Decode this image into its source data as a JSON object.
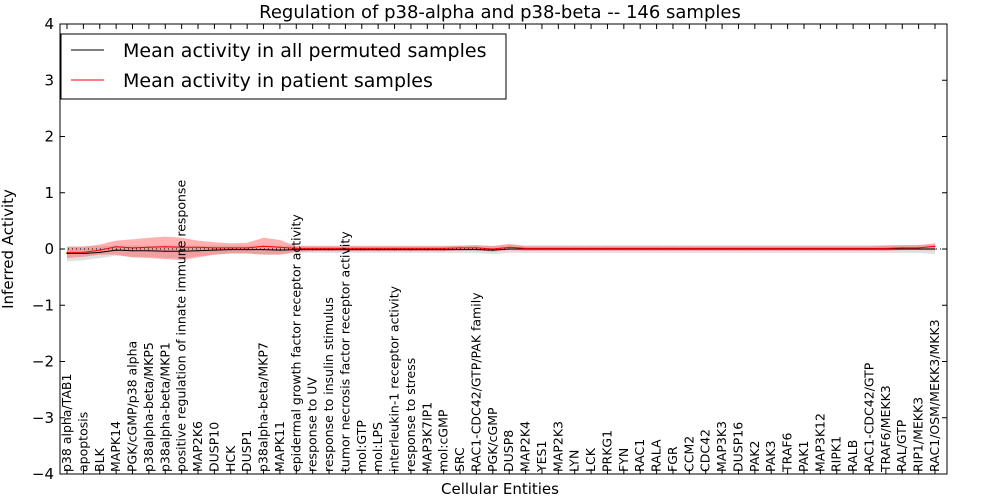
{
  "chart_data": {
    "type": "line",
    "title": "Regulation of p38-alpha and p38-beta -- 146 samples",
    "xlabel": "Cellular Entities",
    "ylabel": "Inferred Activity",
    "ylim": [
      -4,
      4
    ],
    "yticks": [
      -4,
      -3,
      -2,
      -1,
      0,
      1,
      2,
      3,
      4
    ],
    "ytick_labels": [
      "−4",
      "−3",
      "−2",
      "−1",
      "0",
      "1",
      "2",
      "3",
      "4"
    ],
    "grid": false,
    "legend_position": "top-left",
    "categories": [
      "p38 alpha/TAB1",
      "apoptosis",
      "BLK",
      "MAPK14",
      "PGK/cGMP/p38 alpha",
      "p38alpha-beta/MKP5",
      "p38alpha-beta/MKP1",
      "positive regulation of innate immune response",
      "MAP2K6",
      "DUSP10",
      "HCK",
      "DUSP1",
      "p38alpha-beta/MKP7",
      "MAPK11",
      "epidermal growth factor receptor activity",
      "response to UV",
      "response to insulin stimulus",
      "tumor necrosis factor receptor activity",
      "mol:GTP",
      "mol:LPS",
      "interleukin-1 receptor activity",
      "response to stress",
      "MAP3K7IP1",
      "mol:cGMP",
      "SRC",
      "RAC1-CDC42/GTP/PAK family",
      "PGK/cGMP",
      "DUSP8",
      "MAP2K4",
      "YES1",
      "MAP2K3",
      "LYN",
      "LCK",
      "PRKG1",
      "FYN",
      "RAC1",
      "RALA",
      "FGR",
      "CCM2",
      "CDC42",
      "MAP3K3",
      "DUSP16",
      "PAK2",
      "PAK3",
      "TRAF6",
      "PAK1",
      "MAP3K12",
      "RIPK1",
      "RALB",
      "RAC1-CDC42/GTP",
      "TRAF6/MEKK3",
      "RAL/GTP",
      "RIP1/MEKK3",
      "RAC1/OSM/MEKK3/MKK3"
    ],
    "series": [
      {
        "name": "Mean activity in all permuted samples",
        "color": "#000000",
        "values": [
          -0.08,
          -0.08,
          -0.06,
          -0.02,
          -0.03,
          -0.03,
          -0.04,
          -0.04,
          -0.03,
          -0.02,
          -0.01,
          -0.01,
          -0.01,
          -0.02,
          -0.01,
          -0.01,
          -0.01,
          -0.01,
          -0.01,
          -0.01,
          -0.01,
          -0.01,
          -0.01,
          -0.01,
          -0.01,
          -0.01,
          -0.02,
          0.0,
          0.0,
          0.0,
          0.0,
          0.0,
          0.0,
          0.0,
          0.0,
          0.0,
          0.0,
          0.0,
          0.0,
          0.0,
          0.0,
          0.0,
          0.0,
          0.0,
          0.0,
          0.0,
          0.0,
          0.0,
          0.0,
          0.0,
          0.0,
          0.0,
          0.0,
          0.0
        ],
        "band_lower": [
          -0.22,
          -0.2,
          -0.16,
          -0.12,
          -0.14,
          -0.14,
          -0.16,
          -0.16,
          -0.13,
          -0.1,
          -0.08,
          -0.08,
          -0.1,
          -0.1,
          -0.07,
          -0.07,
          -0.07,
          -0.07,
          -0.07,
          -0.07,
          -0.07,
          -0.07,
          -0.07,
          -0.07,
          -0.07,
          -0.07,
          -0.09,
          -0.07,
          -0.07,
          -0.07,
          -0.07,
          -0.07,
          -0.07,
          -0.07,
          -0.07,
          -0.07,
          -0.07,
          -0.07,
          -0.07,
          -0.07,
          -0.07,
          -0.07,
          -0.07,
          -0.07,
          -0.07,
          -0.07,
          -0.07,
          -0.07,
          -0.07,
          -0.07,
          -0.07,
          -0.07,
          -0.07,
          -0.09
        ],
        "band_upper": [
          0.05,
          0.05,
          0.05,
          0.06,
          0.06,
          0.06,
          0.06,
          0.06,
          0.06,
          0.06,
          0.06,
          0.06,
          0.06,
          0.06,
          0.06,
          0.06,
          0.06,
          0.06,
          0.06,
          0.06,
          0.06,
          0.06,
          0.06,
          0.06,
          0.06,
          0.06,
          0.06,
          0.07,
          0.07,
          0.07,
          0.07,
          0.07,
          0.07,
          0.07,
          0.07,
          0.07,
          0.07,
          0.07,
          0.07,
          0.07,
          0.07,
          0.07,
          0.07,
          0.07,
          0.07,
          0.07,
          0.07,
          0.07,
          0.07,
          0.07,
          0.07,
          0.07,
          0.07,
          0.08
        ]
      },
      {
        "name": "Mean activity in patient samples",
        "color": "#ff0000",
        "values": [
          -0.06,
          -0.06,
          -0.02,
          0.04,
          0.02,
          0.03,
          0.04,
          0.03,
          0.03,
          0.02,
          0.02,
          0.02,
          0.05,
          0.03,
          0.01,
          0.01,
          0.01,
          0.01,
          0.01,
          0.01,
          0.01,
          0.01,
          0.01,
          0.01,
          0.02,
          0.02,
          0.0,
          0.03,
          0.01,
          0.01,
          0.01,
          0.01,
          0.01,
          0.01,
          0.01,
          0.01,
          0.01,
          0.01,
          0.01,
          0.01,
          0.01,
          0.01,
          0.01,
          0.01,
          0.01,
          0.01,
          0.01,
          0.01,
          0.01,
          0.01,
          0.01,
          0.02,
          0.02,
          0.05
        ],
        "band_lower": [
          -0.16,
          -0.14,
          -0.1,
          -0.1,
          -0.15,
          -0.16,
          -0.18,
          -0.2,
          -0.15,
          -0.1,
          -0.08,
          -0.08,
          -0.1,
          -0.1,
          -0.05,
          -0.04,
          -0.04,
          -0.04,
          -0.04,
          -0.04,
          -0.04,
          -0.04,
          -0.04,
          -0.04,
          -0.02,
          -0.02,
          -0.05,
          -0.02,
          -0.03,
          -0.03,
          -0.03,
          -0.03,
          -0.03,
          -0.03,
          -0.03,
          -0.03,
          -0.03,
          -0.03,
          -0.03,
          -0.03,
          -0.03,
          -0.03,
          -0.03,
          -0.03,
          -0.03,
          -0.03,
          -0.03,
          -0.03,
          -0.03,
          -0.03,
          -0.03,
          -0.02,
          -0.02,
          -0.02
        ],
        "band_upper": [
          0.04,
          0.04,
          0.08,
          0.15,
          0.17,
          0.2,
          0.22,
          0.2,
          0.15,
          0.12,
          0.1,
          0.11,
          0.2,
          0.16,
          0.05,
          0.05,
          0.05,
          0.05,
          0.05,
          0.05,
          0.05,
          0.05,
          0.05,
          0.05,
          0.06,
          0.07,
          0.05,
          0.09,
          0.05,
          0.05,
          0.05,
          0.05,
          0.05,
          0.05,
          0.05,
          0.05,
          0.05,
          0.05,
          0.05,
          0.05,
          0.05,
          0.05,
          0.05,
          0.05,
          0.05,
          0.05,
          0.05,
          0.05,
          0.05,
          0.05,
          0.06,
          0.07,
          0.07,
          0.1
        ]
      }
    ],
    "band_colors": [
      "#cccccc",
      "#ff5050"
    ]
  }
}
